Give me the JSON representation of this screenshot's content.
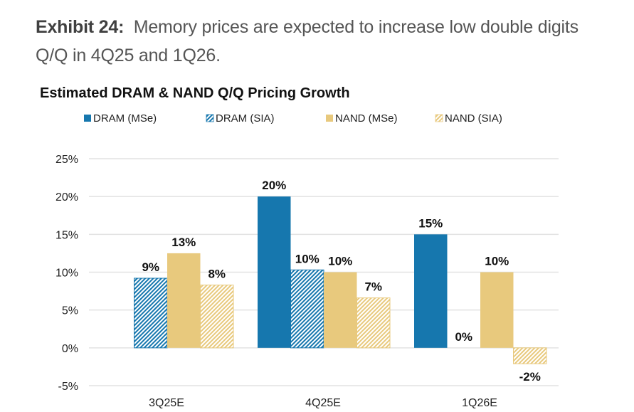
{
  "caption": {
    "label": "Exhibit 24:",
    "text": "Memory prices are expected to increase low double digits Q/Q in 4Q25 and 1Q26."
  },
  "colors": {
    "dram": "#1677AE",
    "nand": "#E8C97D",
    "dram_hatch_bg": "#9CC6DE",
    "nand_hatch_bg": "#F6E9C4"
  },
  "chart_data": {
    "type": "bar",
    "title": "Estimated DRAM & NAND Q/Q Pricing Growth",
    "xlabel": "",
    "ylabel": "",
    "categories": [
      "3Q25E",
      "4Q25E",
      "1Q26E"
    ],
    "ylim": [
      -5,
      25
    ],
    "yticks": [
      -5,
      0,
      5,
      10,
      15,
      20,
      25
    ],
    "ytick_labels": [
      "-5%",
      "0%",
      "5%",
      "10%",
      "15%",
      "20%",
      "25%"
    ],
    "grid": true,
    "legend_position": "top",
    "series": [
      {
        "name": "DRAM (MSe)",
        "key": "dram",
        "hatched": false,
        "values": [
          null,
          20,
          15
        ],
        "labels": [
          null,
          "20%",
          "15%"
        ]
      },
      {
        "name": "DRAM (SIA)",
        "key": "dram",
        "hatched": true,
        "values": [
          9.2,
          10.3,
          0
        ],
        "labels": [
          "9%",
          "10%",
          "0%"
        ]
      },
      {
        "name": "NAND (MSe)",
        "key": "nand",
        "hatched": false,
        "values": [
          12.5,
          10,
          10
        ],
        "labels": [
          "13%",
          "10%",
          "10%"
        ]
      },
      {
        "name": "NAND (SIA)",
        "key": "nand",
        "hatched": true,
        "values": [
          8.3,
          6.6,
          -2.1
        ],
        "labels": [
          "8%",
          "7%",
          "-2%"
        ]
      }
    ]
  }
}
